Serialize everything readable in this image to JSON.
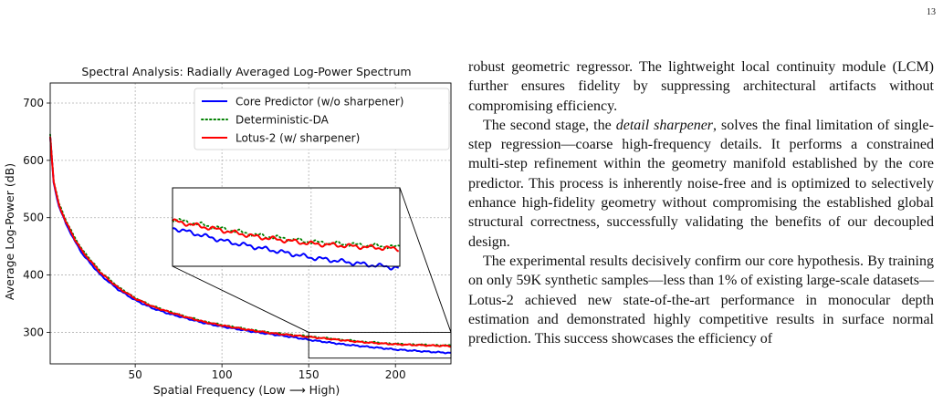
{
  "page": {
    "number": "13"
  },
  "chart_data": {
    "type": "line",
    "title": "Spectral Analysis: Radially Averaged Log-Power Spectrum",
    "xlabel": "Spatial Frequency (Low ⟶ High)",
    "ylabel": "Average Log-Power (dB)",
    "xlim": [
      1,
      232
    ],
    "ylim": [
      245,
      735
    ],
    "xticks": [
      50,
      100,
      150,
      200
    ],
    "yticks": [
      300,
      400,
      500,
      600,
      700
    ],
    "grid": true,
    "legend_position": "top-right",
    "series": [
      {
        "name": "Core Predictor (w/o sharpener)",
        "color": "#0000ff",
        "style": "solid",
        "x": [
          1,
          3,
          6,
          10,
          15,
          20,
          30,
          40,
          50,
          60,
          70,
          80,
          90,
          100,
          110,
          120,
          130,
          140,
          150,
          160,
          170,
          180,
          190,
          200,
          210,
          220,
          232
        ],
        "values": [
          640,
          560,
          520,
          490,
          460,
          435,
          400,
          375,
          356,
          342,
          332,
          324,
          316,
          310,
          305,
          300,
          296,
          292,
          287,
          283,
          279,
          276,
          273,
          270,
          268,
          266,
          264
        ]
      },
      {
        "name": "Deterministic-DA",
        "color": "#008000",
        "style": "dotted",
        "x": [
          1,
          3,
          6,
          10,
          15,
          20,
          30,
          40,
          50,
          60,
          70,
          80,
          90,
          100,
          110,
          120,
          130,
          140,
          150,
          160,
          170,
          180,
          190,
          200,
          210,
          220,
          232
        ],
        "values": [
          645,
          565,
          525,
          496,
          466,
          442,
          406,
          380,
          360,
          346,
          336,
          327,
          319,
          313,
          308,
          303,
          299,
          296,
          293,
          290,
          287,
          284,
          282,
          280,
          279,
          278,
          277
        ]
      },
      {
        "name": "Lotus-2 (w/ sharpener)",
        "color": "#ff0000",
        "style": "solid",
        "x": [
          1,
          3,
          6,
          10,
          15,
          20,
          30,
          40,
          50,
          60,
          70,
          80,
          90,
          100,
          110,
          120,
          130,
          140,
          150,
          160,
          170,
          180,
          190,
          200,
          210,
          220,
          232
        ],
        "values": [
          642,
          562,
          522,
          493,
          463,
          439,
          404,
          378,
          359,
          345,
          335,
          326,
          318,
          312,
          307,
          302,
          298,
          295,
          292,
          289,
          286,
          283,
          281,
          279,
          278,
          277,
          276
        ]
      }
    ],
    "inset": {
      "xlim": [
        150,
        232
      ],
      "ylim": [
        255,
        300
      ],
      "description_visible": false
    }
  },
  "body": {
    "p1": "robust geometric regressor. The lightweight local continuity module (LCM) further ensures fidelity by suppressing architectural artifacts without compromising efficiency.",
    "p2_pre": "The second stage, the ",
    "p2_em": "detail sharpener",
    "p2_post": ", solves the final limitation of single-step regression—coarse high-frequency details. It performs a constrained multi-step refinement within the geometry manifold established by the core predictor. This process is inherently noise-free and is optimized to selectively enhance high-fidelity geometry without compromising the established global structural correctness, successfully validating the benefits of our decoupled design.",
    "p3": "The experimental results decisively confirm our core hypothesis. By training on only 59K synthetic samples—less than 1% of existing large-scale datasets—Lotus-2 achieved new state-of-the-art performance in monocular depth estimation and demonstrated highly competitive results in surface normal prediction. This success showcases the efficiency of"
  }
}
